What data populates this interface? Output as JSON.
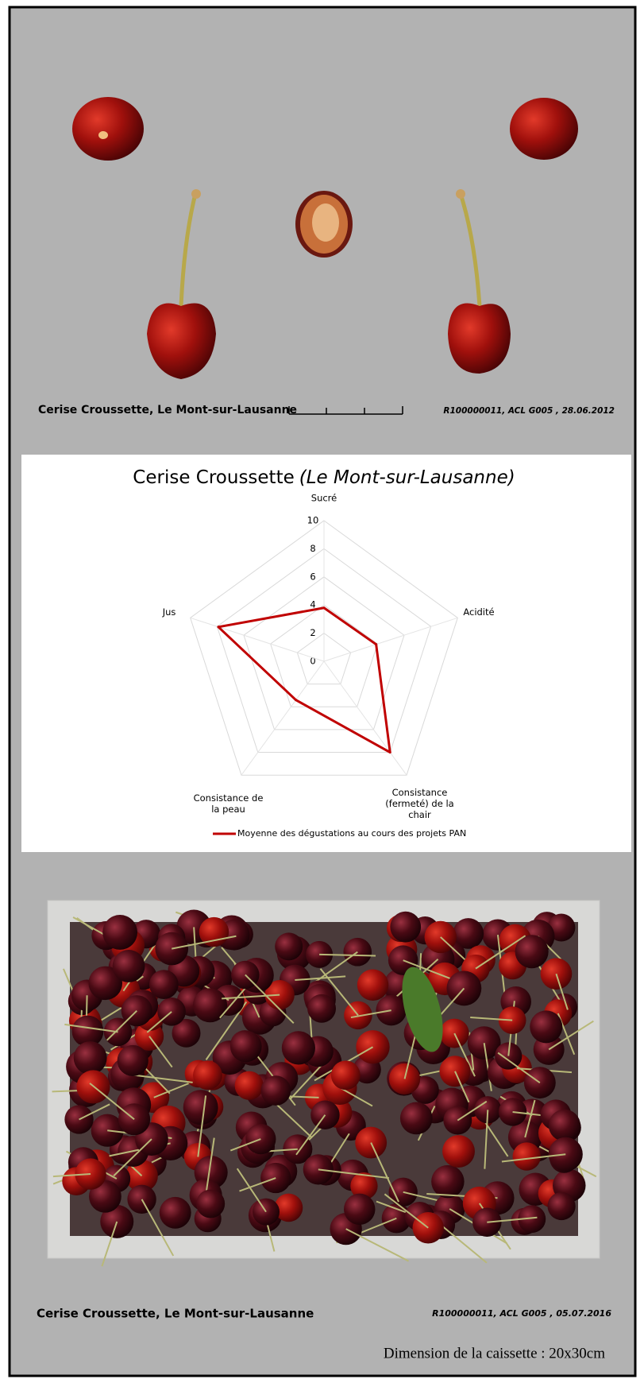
{
  "top_photo": {
    "caption": "Cerise Croussette, Le Mont-sur-Lausanne",
    "reference": "R100000011, ACL G005 , 28.06.2012"
  },
  "chart_data": {
    "type": "radar",
    "title": "Cerise Croussette",
    "title_italic": "(Le Mont-sur-Lausanne)",
    "categories": [
      "Sucré",
      "Acidité",
      "Consistance (fermeté) de la chair",
      "Consistance de la peau",
      "Jus"
    ],
    "rlim": [
      0,
      10
    ],
    "rticks": [
      0,
      2,
      4,
      6,
      8,
      10
    ],
    "grid": true,
    "legend": "bottom",
    "series": [
      {
        "name": "Moyenne des dégustations au cours des projets PAN",
        "color": "#c00000",
        "values": [
          3.8,
          3.9,
          8.0,
          3.4,
          7.9
        ]
      }
    ]
  },
  "bottom_photo": {
    "caption": "Cerise Croussette, Le Mont-sur-Lausanne",
    "reference": "R100000011, ACL G005 , 05.07.2016",
    "dimension": "Dimension de la caissette : 20x30cm"
  }
}
